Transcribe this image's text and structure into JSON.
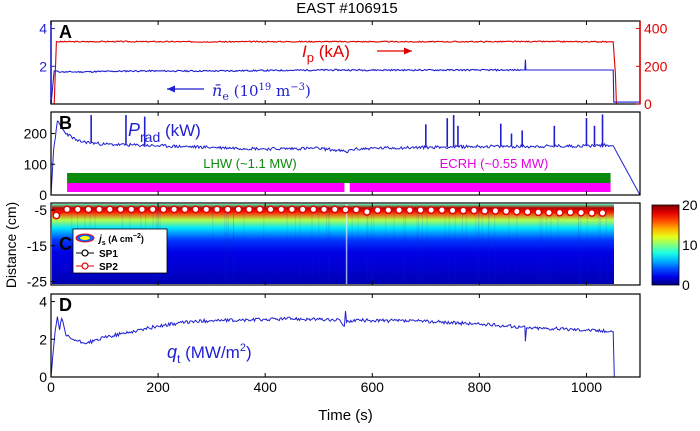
{
  "figure": {
    "title": "EAST #106915",
    "xlabel": "Time (s)",
    "xticks": [
      0,
      200,
      400,
      600,
      800,
      1000
    ],
    "xlim": [
      0,
      1100
    ]
  },
  "chart_data": [
    {
      "panel": "A",
      "type": "line",
      "ylim_left": [
        0,
        4.4
      ],
      "ylim_right": [
        0,
        440
      ],
      "yticks_left": [
        2,
        4
      ],
      "yticks_right": [
        0,
        200,
        400
      ],
      "series": [
        {
          "name": "I_p (kA)",
          "axis": "right",
          "color": "#e00000",
          "x": [
            0,
            6,
            10,
            100,
            300,
            500,
            700,
            900,
            1040,
            1050,
            1054,
            1056,
            1100
          ],
          "values": [
            0,
            0,
            330,
            331,
            330,
            331,
            330,
            331,
            330,
            330,
            160,
            0,
            0
          ]
        },
        {
          "name": "n_e (10^19 m^-3)",
          "axis": "left",
          "color": "#1f1fd0",
          "x": [
            0,
            6,
            20,
            50,
            150,
            300,
            500,
            700,
            885,
            886,
            887,
            900,
            1000,
            1050,
            1051,
            1100
          ],
          "values": [
            0,
            1.75,
            1.7,
            1.7,
            1.75,
            1.75,
            1.8,
            1.8,
            1.8,
            2.35,
            1.8,
            1.8,
            1.8,
            1.8,
            0.1,
            0.1
          ]
        }
      ],
      "annotations": [
        {
          "text": "I",
          "sub": "p",
          "rest": " (kA)",
          "color": "#e00000"
        },
        {
          "text": "n̄",
          "sub": "e",
          "rest": " (10",
          "sup": "19",
          "rest2": " m",
          "sup2": "−3",
          "rest3": ")",
          "color": "#1f1fd0"
        }
      ]
    },
    {
      "panel": "B",
      "type": "line",
      "ylim": [
        0,
        270
      ],
      "yticks": [
        0,
        100,
        200
      ],
      "series": [
        {
          "name": "P_rad (kW)",
          "color": "#1f1fd0",
          "x": [
            0,
            5,
            12,
            25,
            50,
            100,
            200,
            300,
            400,
            500,
            548,
            552,
            560,
            600,
            700,
            800,
            900,
            1000,
            1040,
            1050,
            1100
          ],
          "values": [
            0,
            150,
            240,
            205,
            175,
            165,
            160,
            155,
            150,
            152,
            142,
            138,
            148,
            152,
            155,
            158,
            158,
            160,
            162,
            160,
            0
          ]
        }
      ],
      "spikes": [
        [
          75,
          260
        ],
        [
          140,
          260
        ],
        [
          175,
          255
        ],
        [
          700,
          230
        ],
        [
          740,
          250
        ],
        [
          752,
          260
        ],
        [
          760,
          225
        ],
        [
          840,
          232
        ],
        [
          860,
          200
        ],
        [
          880,
          210
        ],
        [
          940,
          225
        ],
        [
          1000,
          250
        ],
        [
          1015,
          225
        ],
        [
          1030,
          262
        ]
      ],
      "heating": [
        {
          "label": "LHW (~1.1 MW)",
          "color": "#0a8a0a",
          "start": 30,
          "end": 1045
        },
        {
          "label": "ECRH (~0.55 MW)",
          "color": "#ff00ff",
          "segments": [
            [
              30,
              548
            ],
            [
              558,
              1045
            ]
          ]
        }
      ]
    },
    {
      "panel": "C",
      "type": "heatmap",
      "ylabel": "Distance (cm)",
      "ylim": [
        -26,
        -3
      ],
      "yticks": [
        -5,
        -15,
        -25
      ],
      "colorbar": {
        "range": [
          0,
          20
        ],
        "ticks": [
          0,
          10,
          20
        ]
      },
      "legend": [
        {
          "label": "j",
          "sub": "s",
          "rest": " (A cm",
          "sup": "−2",
          "rest2": ")"
        },
        {
          "label": "SP1"
        },
        {
          "label": "SP2"
        }
      ],
      "sp2": {
        "x": [
          10,
          30,
          50,
          70,
          90,
          110,
          130,
          150,
          170,
          190,
          210,
          230,
          250,
          270,
          290,
          310,
          330,
          350,
          370,
          390,
          410,
          430,
          450,
          470,
          490,
          510,
          530,
          550,
          570,
          590,
          610,
          630,
          650,
          670,
          690,
          710,
          730,
          750,
          770,
          790,
          810,
          830,
          850,
          870,
          890,
          910,
          930,
          950,
          970,
          990,
          1010,
          1030
        ],
        "values": [
          -6.5,
          -4.8,
          -4.8,
          -4.8,
          -4.8,
          -4.8,
          -4.8,
          -4.8,
          -4.8,
          -4.8,
          -4.8,
          -4.8,
          -4.8,
          -4.8,
          -4.8,
          -4.8,
          -4.8,
          -4.8,
          -4.8,
          -4.8,
          -4.8,
          -4.8,
          -4.8,
          -4.8,
          -4.8,
          -4.8,
          -4.8,
          -4.9,
          -4.9,
          -5.5,
          -5.0,
          -5.0,
          -5.0,
          -5.0,
          -5.0,
          -5.0,
          -5.0,
          -5.1,
          -5.1,
          -5.1,
          -5.2,
          -5.2,
          -5.3,
          -5.4,
          -5.5,
          -5.6,
          -5.7,
          -5.7,
          -5.6,
          -5.7,
          -5.8,
          -5.8
        ]
      }
    },
    {
      "panel": "D",
      "type": "line",
      "ylim": [
        0,
        4.4
      ],
      "yticks": [
        0,
        2,
        4
      ],
      "series": [
        {
          "name": "q_t (MW/m^2)",
          "color": "#1f1fd0",
          "x": [
            0,
            3,
            8,
            12,
            16,
            20,
            28,
            40,
            60,
            80,
            100,
            150,
            200,
            250,
            300,
            350,
            400,
            450,
            500,
            540,
            548,
            550,
            552,
            560,
            600,
            700,
            800,
            880,
            885,
            886,
            888,
            900,
            1000,
            1050,
            1052,
            1100
          ],
          "values": [
            0,
            1.0,
            2.5,
            3.2,
            2.5,
            3.1,
            2.2,
            2.0,
            1.8,
            1.9,
            2.1,
            2.4,
            2.7,
            2.9,
            3.0,
            3.0,
            3.05,
            3.1,
            3.05,
            3.0,
            2.7,
            3.5,
            2.9,
            3.0,
            3.0,
            2.95,
            2.8,
            2.65,
            2.65,
            1.9,
            2.6,
            2.6,
            2.5,
            2.4,
            0,
            0
          ]
        }
      ],
      "annotation": {
        "text": "q",
        "sub": "t",
        "rest": " (MW/m",
        "sup": "2",
        "rest2": ")"
      }
    }
  ]
}
